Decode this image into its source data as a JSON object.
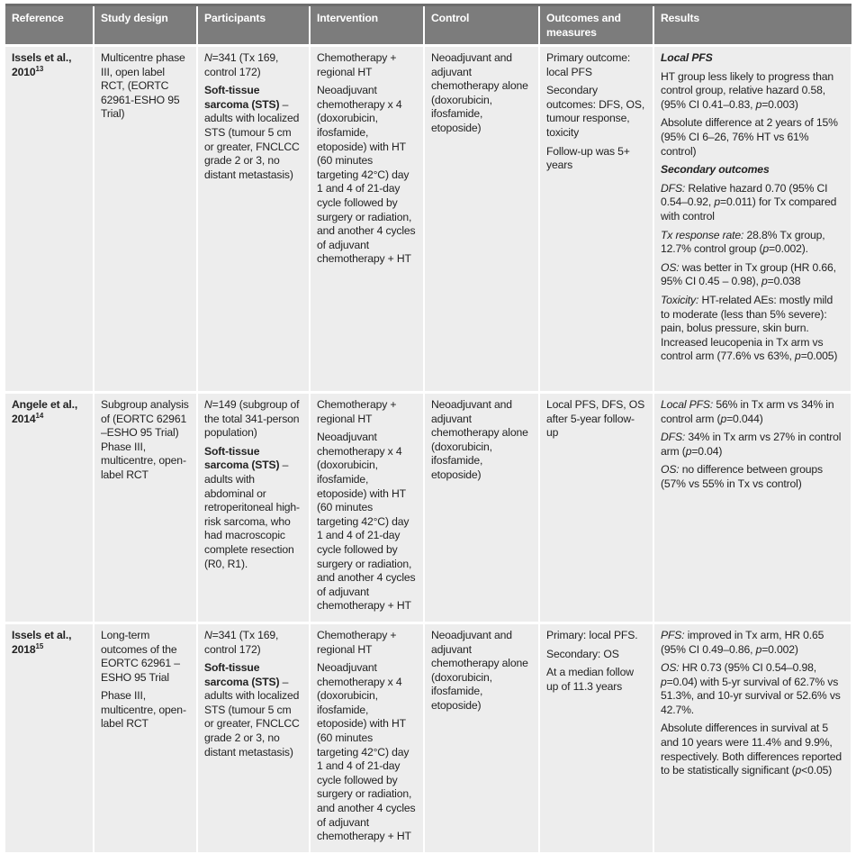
{
  "table": {
    "header": [
      "Reference",
      "Study design",
      "Participants",
      "Intervention",
      "Control",
      "Outcomes and measures",
      "Results"
    ],
    "rows": [
      {
        "reference": {
          "text": "Issels et al., 2010",
          "ref": "13"
        },
        "cells": [
          [
            [
              "Multicentre phase III, open label RCT, (EORTC 62961-ESHO 95 Trial)"
            ]
          ],
          [
            [
              {
                "i": "N"
              },
              "=341 (Tx 169, control 172)"
            ],
            [
              {
                "b": "Soft-tissue sarcoma (STS)"
              },
              " – adults with localized STS (tumour 5 cm or greater, FNCLCC grade 2 or 3, no distant metastasis)"
            ]
          ],
          [
            [
              "Chemotherapy + regional HT"
            ],
            [
              "Neoadjuvant chemotherapy x 4 (doxorubicin, ifosfamide, etoposide) with HT (60 minutes targeting 42°C) day 1 and 4 of 21-day cycle followed by surgery or radiation, and another 4 cycles of adjuvant chemotherapy + HT"
            ]
          ],
          [
            [
              "Neoadjuvant and adjuvant chemotherapy alone (doxorubicin, ifosfamide, etoposide)"
            ]
          ],
          [
            [
              "Primary outcome: local PFS"
            ],
            [
              "Secondary outcomes: DFS, OS, tumour response, toxicity"
            ],
            [
              "Follow-up was 5+ years"
            ]
          ],
          [
            [
              {
                "bi": "Local PFS"
              }
            ],
            [
              "HT group less likely to progress than control group, relative hazard 0.58, (95% CI 0.41–0.83, ",
              {
                "i": "p"
              },
              "=0.003)"
            ],
            [
              "Absolute difference at 2 years of 15% (95% CI 6–26, 76% HT vs 61% control)"
            ],
            [
              {
                "bi": "Secondary outcomes"
              }
            ],
            [
              {
                "i": "DFS:"
              },
              " Relative hazard 0.70 (95% CI 0.54–0.92, ",
              {
                "i": "p"
              },
              "=0.011) for Tx compared with control"
            ],
            [
              {
                "i": "Tx response rate:"
              },
              " 28.8% Tx group, 12.7% control group (",
              {
                "i": "p"
              },
              "=0.002)."
            ],
            [
              {
                "i": "OS:"
              },
              " was better in Tx group (HR 0.66, 95% CI 0.45 – 0.98), ",
              {
                "i": "p"
              },
              "=0.038"
            ],
            [
              {
                "i": "Toxicity:"
              },
              " HT-related AEs: mostly mild to moderate (less than 5% severe): pain, bolus pressure, skin burn. Increased leucopenia in Tx arm vs control arm (77.6% vs 63%, ",
              {
                "i": "p"
              },
              "=0.005)"
            ]
          ]
        ]
      },
      {
        "reference": {
          "text": "Angele et al., 2014",
          "ref": "14"
        },
        "cells": [
          [
            [
              "Subgroup analysis of (EORTC 62961 –ESHO 95 Trial) Phase III, multicentre, open-label RCT"
            ]
          ],
          [
            [
              {
                "i": "N"
              },
              "=149 (subgroup of the total 341-person population)"
            ],
            [
              {
                "b": "Soft-tissue sarcoma (STS)"
              },
              " – adults with abdominal or retroperitoneal high-risk sarcoma, who had macroscopic complete resection (R0, R1)."
            ]
          ],
          [
            [
              "Chemotherapy + regional HT"
            ],
            [
              "Neoadjuvant chemotherapy x 4 (doxorubicin, ifosfamide, etoposide) with HT (60 minutes targeting 42°C) day 1 and 4 of 21-day cycle followed by surgery or radiation, and another 4 cycles of adjuvant chemotherapy + HT"
            ]
          ],
          [
            [
              "Neoadjuvant and adjuvant chemotherapy alone (doxorubicin, ifosfamide, etoposide)"
            ]
          ],
          [
            [
              "Local PFS, DFS, OS after 5-year follow-up"
            ]
          ],
          [
            [
              {
                "i": "Local PFS:"
              },
              " 56% in Tx arm vs 34% in control arm (",
              {
                "i": "p"
              },
              "=0.044)"
            ],
            [
              {
                "i": "DFS:"
              },
              " 34% in Tx arm vs 27% in control arm (",
              {
                "i": "p"
              },
              "=0.04)"
            ],
            [
              {
                "i": "OS:"
              },
              " no difference between groups (57% vs 55% in Tx vs control)"
            ]
          ]
        ]
      },
      {
        "reference": {
          "text": "Issels et al., 2018",
          "ref": "15"
        },
        "cells": [
          [
            [
              "Long-term outcomes of the EORTC 62961 – ESHO 95 Trial"
            ],
            [
              "Phase III, multicentre, open-label RCT"
            ]
          ],
          [
            [
              {
                "i": "N"
              },
              "=341 (Tx 169, control 172)"
            ],
            [
              {
                "b": "Soft-tissue sarcoma (STS)"
              },
              " – adults with localized STS (tumour 5 cm or greater, FNCLCC grade 2 or 3, no distant metastasis)"
            ]
          ],
          [
            [
              "Chemotherapy + regional HT"
            ],
            [
              "Neoadjuvant chemotherapy x 4 (doxorubicin, ifosfamide, etoposide) with HT (60 minutes targeting 42°C) day 1 and 4 of 21-day cycle followed by surgery or radiation, and another 4 cycles of adjuvant chemotherapy + HT"
            ]
          ],
          [
            [
              "Neoadjuvant and adjuvant chemotherapy alone (doxorubicin, ifosfamide, etoposide)"
            ]
          ],
          [
            [
              "Primary: local PFS."
            ],
            [
              "Secondary: OS"
            ],
            [
              "At a median follow up of 11.3 years"
            ]
          ],
          [
            [
              {
                "i": "PFS:"
              },
              " improved in Tx arm, HR 0.65 (95% CI 0.49–0.86, ",
              {
                "i": "p"
              },
              "=0.002)"
            ],
            [
              {
                "i": "OS:"
              },
              " HR 0.73 (95% CI 0.54–0.98, ",
              {
                "i": "p"
              },
              "=0.04) with 5-yr survival of 62.7% vs 51.3%, and 10-yr survival or 52.6% vs 42.7%."
            ],
            [
              "Absolute differences in survival at 5 and 10 years were 11.4% and 9.9%, respectively. Both differences reported to be statistically significant (",
              {
                "i": "p"
              },
              "<0.05)"
            ]
          ]
        ]
      }
    ]
  }
}
